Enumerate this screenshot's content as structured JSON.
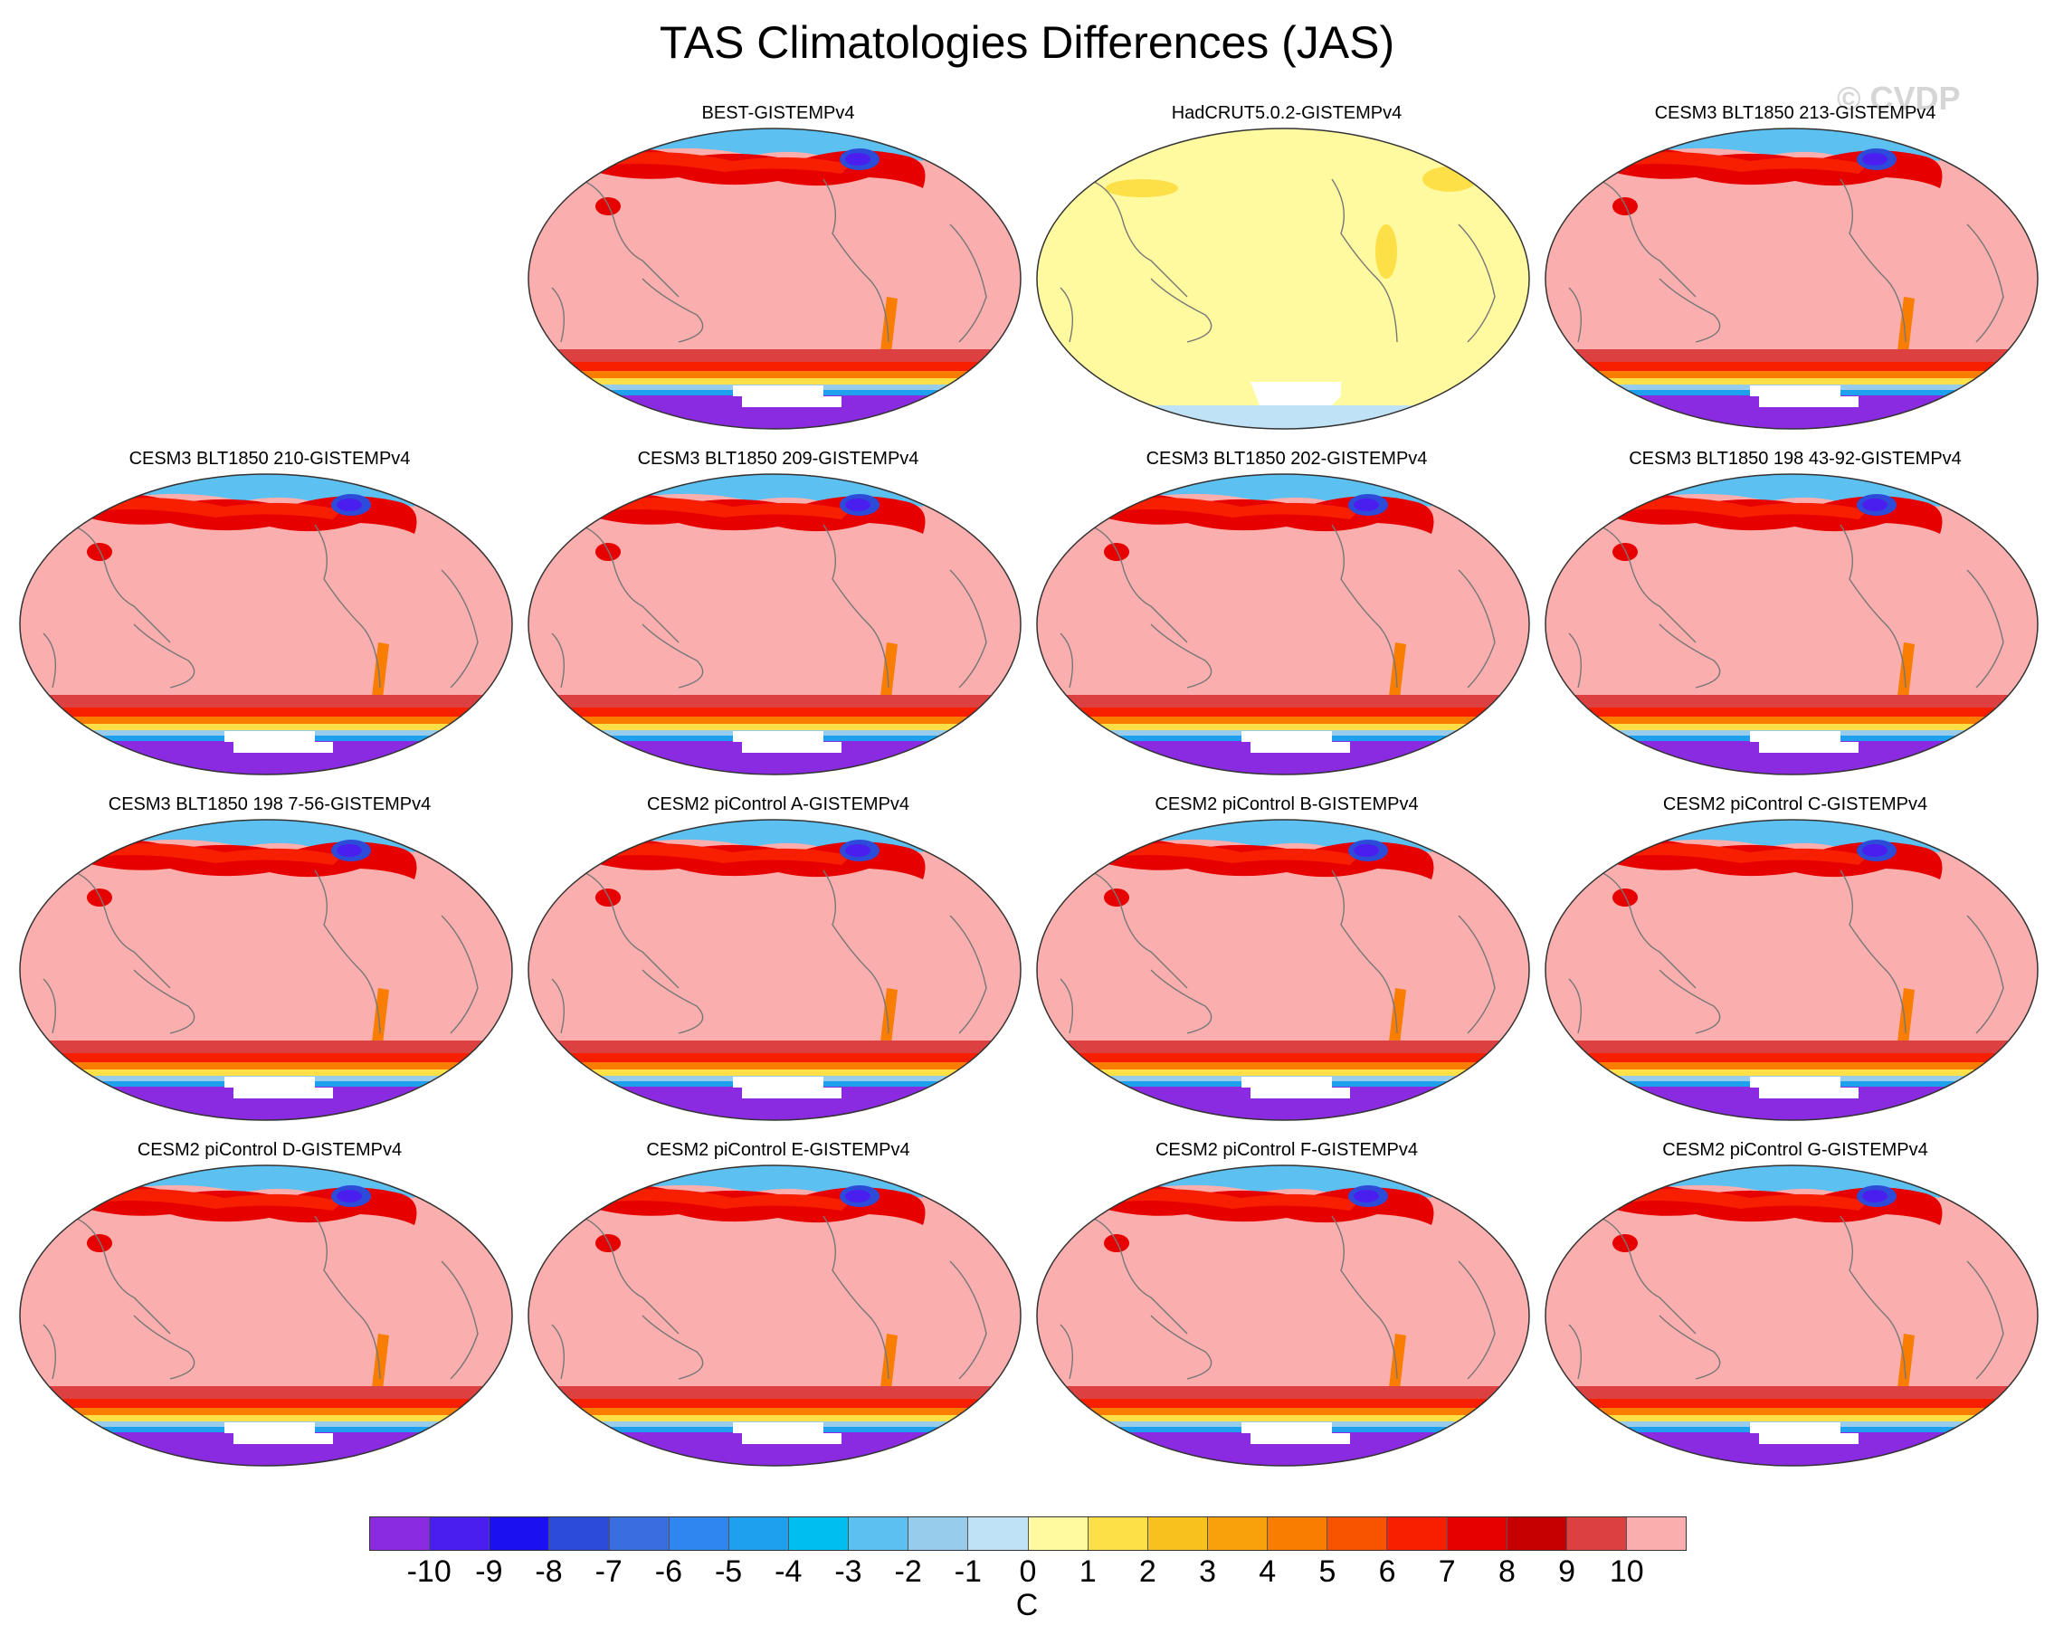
{
  "figure": {
    "title": "TAS Climatologies Differences (JAS)",
    "watermark": "© CVDP"
  },
  "panels": [
    {
      "title": "BEST-GISTEMPv4",
      "style": "warm"
    },
    {
      "title": "HadCRUT5.0.2-GISTEMPv4",
      "style": "neutral"
    },
    {
      "title": "CESM3 BLT1850 213-GISTEMPv4",
      "style": "warm"
    },
    {
      "title": "CESM3 BLT1850 210-GISTEMPv4",
      "style": "warm"
    },
    {
      "title": "CESM3 BLT1850 209-GISTEMPv4",
      "style": "warm"
    },
    {
      "title": "CESM3 BLT1850 202-GISTEMPv4",
      "style": "warm"
    },
    {
      "title": "CESM3 BLT1850 198 43-92-GISTEMPv4",
      "style": "warm"
    },
    {
      "title": "CESM3 BLT1850 198 7-56-GISTEMPv4",
      "style": "warm"
    },
    {
      "title": "CESM2 piControl A-GISTEMPv4",
      "style": "warm"
    },
    {
      "title": "CESM2 piControl B-GISTEMPv4",
      "style": "warm"
    },
    {
      "title": "CESM2 piControl C-GISTEMPv4",
      "style": "warm"
    },
    {
      "title": "CESM2 piControl D-GISTEMPv4",
      "style": "warm"
    },
    {
      "title": "CESM2 piControl E-GISTEMPv4",
      "style": "warm"
    },
    {
      "title": "CESM2 piControl F-GISTEMPv4",
      "style": "warm"
    },
    {
      "title": "CESM2 piControl G-GISTEMPv4",
      "style": "warm"
    }
  ],
  "colorbar": {
    "units": "C",
    "tick_labels": [
      "-10",
      "-9",
      "-8",
      "-7",
      "-6",
      "-5",
      "-4",
      "-3",
      "-2",
      "-1",
      "0",
      "1",
      "2",
      "3",
      "4",
      "5",
      "6",
      "7",
      "8",
      "9",
      "10"
    ],
    "colors": [
      "#8a2be2",
      "#4b1ef0",
      "#1a10f0",
      "#2d4bd9",
      "#3a6ee0",
      "#2f86f0",
      "#1ea0ee",
      "#00bff0",
      "#5cc0f0",
      "#98ccec",
      "#c0e2f6",
      "#fffaa0",
      "#fde047",
      "#f8c21e",
      "#f8a10a",
      "#f87d00",
      "#f85400",
      "#f81e00",
      "#e60000",
      "#c60000",
      "#dc4040",
      "#fbaeae"
    ]
  }
}
